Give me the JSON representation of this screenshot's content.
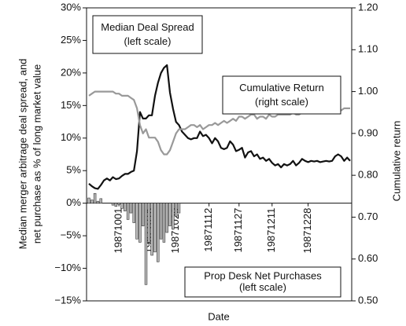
{
  "chart_data": {
    "type": "line",
    "xlabel": "Date",
    "ylabel": [
      "Median merger arbitrage deal spread, and",
      "net purchase as % of long market value"
    ],
    "y2label": "Cumulative return",
    "categories": [
      null,
      null,
      null,
      null,
      null,
      null,
      null,
      null,
      null,
      null,
      "19871001",
      null,
      null,
      null,
      null,
      null,
      null,
      null,
      null,
      null,
      "19871015",
      null,
      null,
      null,
      null,
      null,
      null,
      null,
      null,
      "19871029",
      null,
      null,
      null,
      null,
      null,
      null,
      null,
      null,
      null,
      null,
      "19871112",
      null,
      null,
      null,
      null,
      null,
      null,
      null,
      null,
      null,
      "19871127",
      null,
      null,
      null,
      null,
      null,
      null,
      null,
      null,
      null,
      null,
      "19871211",
      null,
      null,
      null,
      null,
      null,
      null,
      null,
      null,
      null,
      null,
      null,
      "19871228",
      null,
      null,
      null,
      null,
      null,
      null,
      null,
      null,
      null,
      null,
      null,
      null,
      null,
      null
    ],
    "ylim": [
      -15,
      30
    ],
    "yticks": [
      {
        "value": -15,
        "label": "−15%"
      },
      {
        "value": -10,
        "label": "−10%"
      },
      {
        "value": -5,
        "label": "−5%"
      },
      {
        "value": 0,
        "label": "0%"
      },
      {
        "value": 5,
        "label": "5%"
      },
      {
        "value": 10,
        "label": "10%"
      },
      {
        "value": 15,
        "label": "15%"
      },
      {
        "value": 20,
        "label": "20%"
      },
      {
        "value": 25,
        "label": "25%"
      },
      {
        "value": 30,
        "label": "30%"
      }
    ],
    "y2lim": [
      0.5,
      1.2
    ],
    "y2ticks": [
      {
        "value": 0.5,
        "label": "0.50"
      },
      {
        "value": 0.6,
        "label": "0.60"
      },
      {
        "value": 0.7,
        "label": "0.70"
      },
      {
        "value": 0.8,
        "label": "0.80"
      },
      {
        "value": 0.9,
        "label": "0.90"
      },
      {
        "value": 1.0,
        "label": "1.00"
      },
      {
        "value": 1.1,
        "label": "1.10"
      },
      {
        "value": 1.2,
        "label": "1.20"
      }
    ],
    "series": [
      {
        "name": "Median Deal Spread",
        "scale_note": "(left scale)",
        "type": "line",
        "axis": "y",
        "color": "#111111",
        "values": [
          3.0,
          2.6,
          2.3,
          2.2,
          2.8,
          3.5,
          3.8,
          3.5,
          4.0,
          3.7,
          3.8,
          4.2,
          4.5,
          4.5,
          4.8,
          5.0,
          8.0,
          14.0,
          13.0,
          13.0,
          13.5,
          13.5,
          16.5,
          18.5,
          20.0,
          20.8,
          21.2,
          17.0,
          14.5,
          12.5,
          12.0,
          11.0,
          10.5,
          10.0,
          9.8,
          10.0,
          10.0,
          11.0,
          10.3,
          10.5,
          10.0,
          9.2,
          10.0,
          9.5,
          8.5,
          8.3,
          8.5,
          9.5,
          9.0,
          8.0,
          8.2,
          8.5,
          7.0,
          7.8,
          8.0,
          7.2,
          7.5,
          6.8,
          7.0,
          6.5,
          6.8,
          6.2,
          5.8,
          6.0,
          5.5,
          6.0,
          5.8,
          6.0,
          6.5,
          5.8,
          6.2,
          6.8,
          6.5,
          6.3,
          6.5,
          6.4,
          6.5,
          6.3,
          6.4,
          6.5,
          6.4,
          6.5,
          7.2,
          7.5,
          7.2,
          6.5,
          7.0,
          6.5
        ]
      },
      {
        "name": "Cumulative Return",
        "scale_note": "(right scale)",
        "type": "line",
        "axis": "y2",
        "color": "#999999",
        "values": [
          0.99,
          0.995,
          1.0,
          1.0,
          1.0,
          1.0,
          1.0,
          1.0,
          1.0,
          0.995,
          0.995,
          0.99,
          0.99,
          0.99,
          0.985,
          0.98,
          0.96,
          0.92,
          0.9,
          0.91,
          0.89,
          0.89,
          0.89,
          0.88,
          0.86,
          0.85,
          0.85,
          0.86,
          0.88,
          0.9,
          0.91,
          0.91,
          0.91,
          0.915,
          0.92,
          0.92,
          0.915,
          0.92,
          0.91,
          0.915,
          0.92,
          0.92,
          0.925,
          0.92,
          0.925,
          0.93,
          0.925,
          0.93,
          0.935,
          0.93,
          0.94,
          0.94,
          0.935,
          0.94,
          0.945,
          0.945,
          0.935,
          0.94,
          0.94,
          0.935,
          0.945,
          0.94,
          0.94,
          0.945,
          0.945,
          0.945,
          0.945,
          0.945,
          0.95,
          0.945,
          0.945,
          0.95,
          0.95,
          0.95,
          0.955,
          0.955,
          0.95,
          0.95,
          0.955,
          0.95,
          0.95,
          0.955,
          0.955,
          0.95,
          0.955,
          0.96,
          0.96,
          0.96
        ]
      },
      {
        "name": "Prop Desk Net Purchases",
        "scale_note": "(left scale)",
        "type": "bar",
        "axis": "y",
        "color": "#bbbbbb",
        "values": [
          0.8,
          0.5,
          1.5,
          0.3,
          0.7,
          0,
          0,
          0,
          -0.3,
          -0.5,
          -0.2,
          -0.8,
          -1.2,
          -2.5,
          -1.5,
          -3.0,
          -5.5,
          -6.0,
          -3.5,
          -12.5,
          -6.0,
          -8.0,
          -7.5,
          -9.0,
          -5.5,
          -6.0,
          -4.5,
          -3.5,
          -4.0,
          -2.0,
          -1.5,
          null,
          null,
          null,
          null,
          null,
          null,
          null,
          null,
          null,
          null,
          null,
          null,
          null,
          null,
          null,
          null,
          null,
          null,
          null,
          null,
          null,
          null,
          null,
          null,
          null,
          null,
          null,
          null,
          null,
          null,
          null,
          null,
          null,
          null,
          null,
          null,
          null,
          null,
          null,
          null,
          null,
          null,
          null,
          null,
          null,
          null,
          null,
          null,
          null,
          null,
          null,
          null,
          null,
          null,
          null,
          null,
          null
        ]
      }
    ]
  }
}
